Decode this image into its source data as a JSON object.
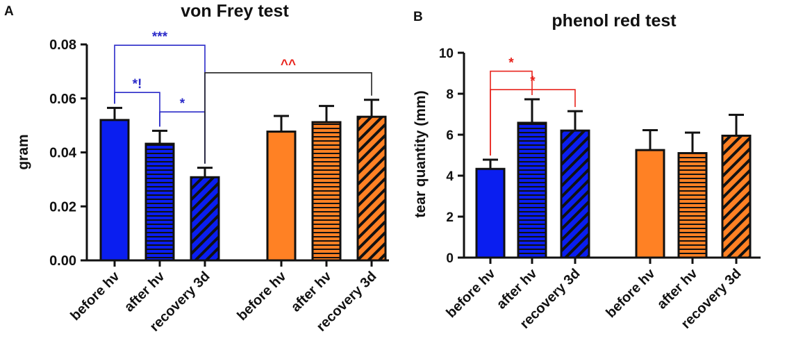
{
  "chart_data": [
    {
      "panel_label": "A",
      "type": "bar",
      "title": "von Frey test",
      "ylabel": "gram",
      "xlabel": "",
      "ylim": [
        0,
        0.08
      ],
      "yticks": [
        "0.00",
        "0.02",
        "0.04",
        "0.06",
        "0.08"
      ],
      "grid": false,
      "categories": [
        "before hv",
        "after hv",
        "recovery 3d",
        "before hv",
        "after hv",
        "recovery 3d"
      ],
      "values": [
        0.052,
        0.0432,
        0.0308,
        0.0477,
        0.0512,
        0.0532
      ],
      "errors": [
        0.0045,
        0.0048,
        0.0035,
        0.0058,
        0.006,
        0.0063
      ],
      "colors": [
        "#0a1ef0",
        "#0a1ef0",
        "#0a1ef0",
        "#ff8124",
        "#ff8124",
        "#ff8124"
      ],
      "patterns": [
        "solid",
        "horizontal",
        "diagonal",
        "solid",
        "horizontal",
        "diagonal"
      ],
      "significance": [
        {
          "from": 0,
          "to": 2,
          "label": "***",
          "level": 0.0797,
          "color": "#2a2ac8"
        },
        {
          "from": 0,
          "to": 1,
          "label": "*!",
          "level": 0.0622,
          "color": "#2a2ac8"
        },
        {
          "from": 1,
          "to": 2,
          "label": "*",
          "level": 0.055,
          "color": "#2a2ac8"
        },
        {
          "from": 2,
          "to": 5,
          "label": "^^",
          "level": 0.0695,
          "color": "#e8231c"
        }
      ]
    },
    {
      "panel_label": "B",
      "type": "bar",
      "title": "phenol red test",
      "ylabel": "tear quantity (mm)",
      "xlabel": "",
      "ylim": [
        0,
        10
      ],
      "yticks": [
        "0",
        "2",
        "4",
        "6",
        "8",
        "10"
      ],
      "grid": false,
      "categories": [
        "before hv",
        "after hv",
        "recovery 3d",
        "before hv",
        "after hv",
        "recovery 3d"
      ],
      "values": [
        4.33,
        6.58,
        6.2,
        5.25,
        5.1,
        5.95
      ],
      "errors": [
        0.45,
        1.15,
        0.95,
        0.97,
        1.0,
        1.02
      ],
      "colors": [
        "#0a1ef0",
        "#0a1ef0",
        "#0a1ef0",
        "#ff8124",
        "#ff8124",
        "#ff8124"
      ],
      "patterns": [
        "solid",
        "horizontal",
        "diagonal",
        "solid",
        "horizontal",
        "diagonal"
      ],
      "significance": [
        {
          "from": 0,
          "to": 1,
          "label": "*",
          "level": 9.1,
          "color": "#e8231c"
        },
        {
          "from": 0,
          "to": 2,
          "label": "*",
          "level": 8.2,
          "color": "#e8231c"
        }
      ]
    }
  ]
}
